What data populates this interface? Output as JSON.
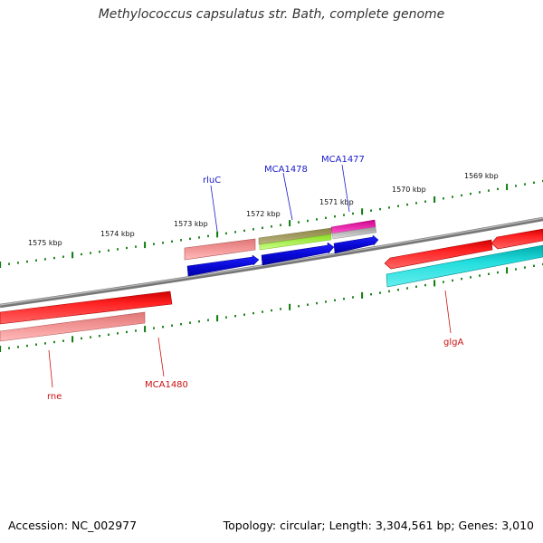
{
  "title": "Methylococcus capsulatus str. Bath, complete genome",
  "footer": {
    "accession": "Accession: NC_002977",
    "summary": "Topology: circular; Length: 3,304,561 bp; Genes: 3,010"
  },
  "scale_labels": [
    "1575 kbp",
    "1574 kbp",
    "1573 kbp",
    "1572 kbp",
    "1571 kbp",
    "1570 kbp",
    "1569 kbp"
  ],
  "gene_labels": {
    "forward": [
      "rluC",
      "MCA1478",
      "MCA1477"
    ],
    "reverse": [
      "rne",
      "MCA1480",
      "glgA"
    ]
  },
  "colors": {
    "forward_label": "#1a1acc",
    "reverse_label": "#cc1111",
    "backbone": "#888888",
    "tick": "#0a7a0a",
    "cds_blue": "#1010e0",
    "gene_red": "#ee1111",
    "gene_pink": "#ee8888",
    "gene_cyan": "#11cccc",
    "gene_olive": "#a09a55",
    "gene_lime": "#99ee33",
    "gene_magenta": "#ee11aa",
    "gene_gray": "#bbbbbb"
  }
}
